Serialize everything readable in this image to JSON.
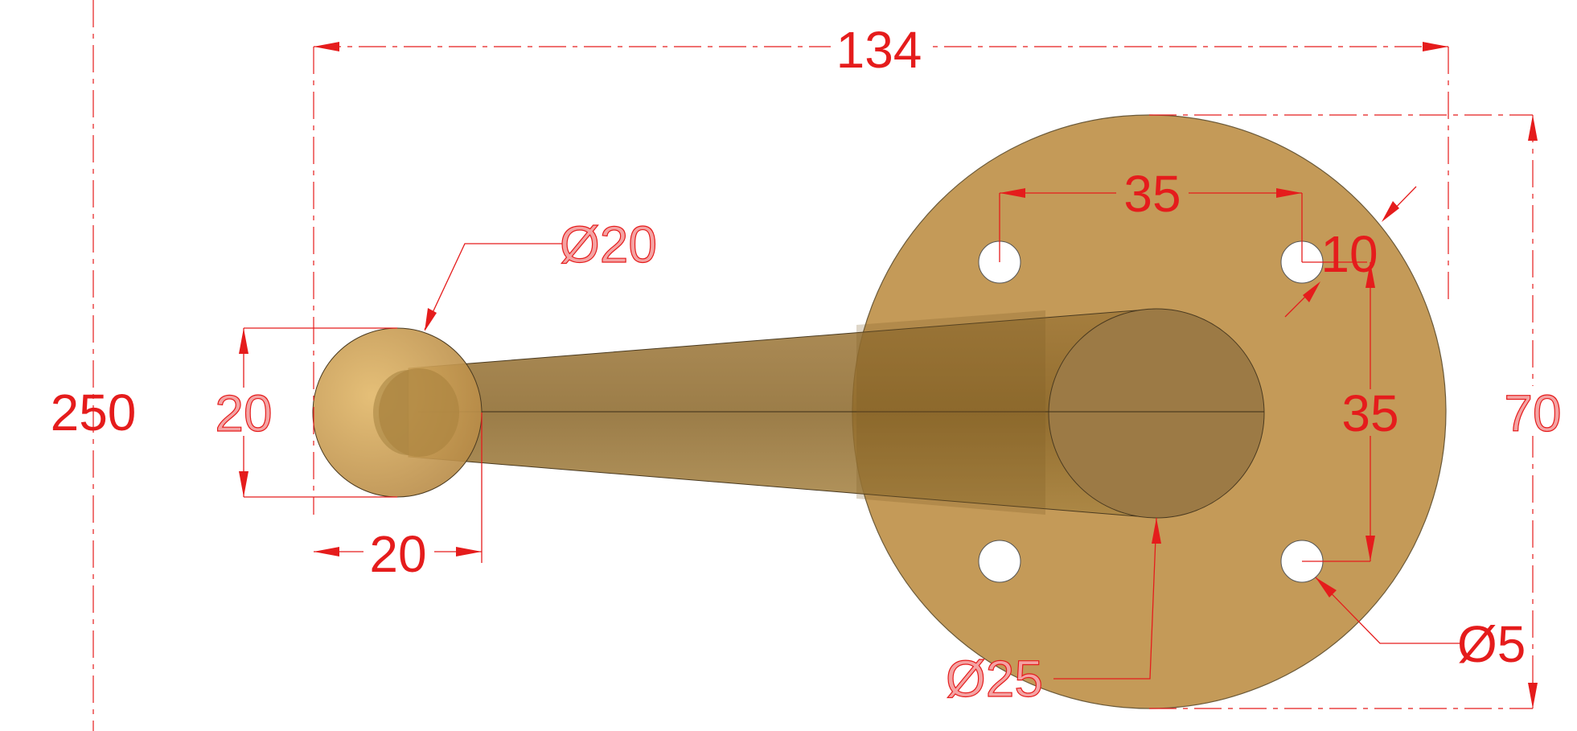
{
  "drawing": {
    "dimensions": {
      "overall_length": "134",
      "overall_height": "250",
      "ball_diameter": "Ø20",
      "ball_height": "20",
      "ball_width": "20",
      "hole_spacing_horizontal": "35",
      "hole_spacing_vertical": "35",
      "edge_offset": "10",
      "plate_diameter_side": "70",
      "shaft_diameter": "Ø25",
      "hole_diameter": "Ø5"
    },
    "colors": {
      "dimension": "#e51c1c",
      "part_fill": "#c49a58",
      "part_dark": "#8c6a30",
      "hole_fill": "#ffffff"
    }
  }
}
